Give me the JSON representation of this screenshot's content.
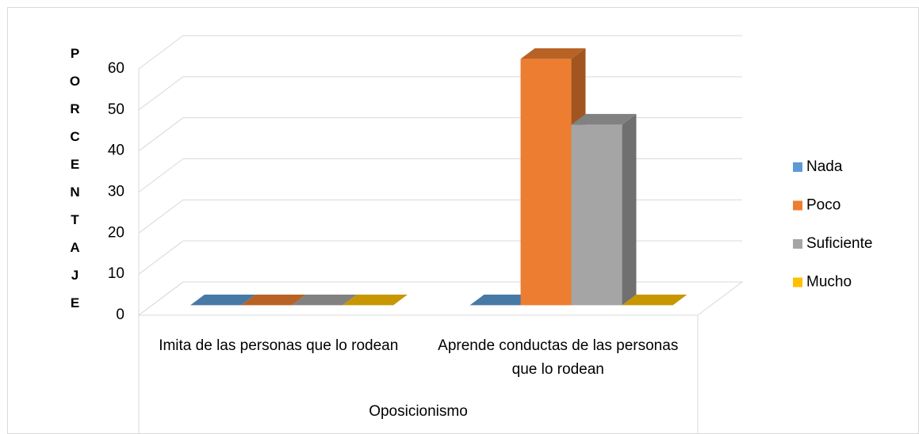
{
  "chart_data": {
    "type": "bar3d",
    "y_axis_label": "PORCENTAJE",
    "x_axis_label": "Oposicionismo",
    "categories": [
      "Imita de las personas que lo rodean",
      "Aprende conductas de las personas que lo rodean"
    ],
    "series": [
      {
        "name": "Nada",
        "color": "#5b9bd5",
        "values": [
          0,
          0
        ]
      },
      {
        "name": "Poco",
        "color": "#ed7d31",
        "values": [
          0,
          60
        ]
      },
      {
        "name": "Suficiente",
        "color": "#a5a5a5",
        "values": [
          0,
          44
        ]
      },
      {
        "name": "Mucho",
        "color": "#ffc000",
        "values": [
          0,
          0
        ]
      }
    ],
    "ylim": [
      0,
      60
    ],
    "yticks": [
      0,
      10,
      20,
      30,
      40,
      50,
      60
    ],
    "grid": true,
    "legend": "right"
  }
}
